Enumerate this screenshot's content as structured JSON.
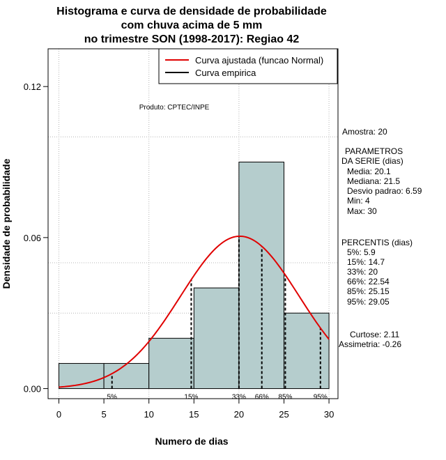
{
  "chart_data": {
    "type": "bar",
    "title_lines": [
      "Histograma e curva de densidade de probabilidade",
      "com chuva acima de 5 mm",
      "no trimestre SON (1998-2017): Regiao 42"
    ],
    "xlabel": "Numero de dias",
    "ylabel": "Densidade de probabilidade",
    "xlim": [
      -1.2,
      31
    ],
    "ylim": [
      -0.004,
      0.135
    ],
    "x_ticks": [
      0,
      5,
      10,
      15,
      20,
      25,
      30
    ],
    "x_tick_labels": [
      "0",
      "5",
      "10",
      "15",
      "20",
      "25",
      "30"
    ],
    "y_ticks": [
      0.0,
      0.06,
      0.12
    ],
    "y_tick_labels": [
      "0.00",
      "0.06",
      "0.12"
    ],
    "grid_x": [
      0,
      10,
      20,
      30
    ],
    "grid_y": [
      0.03,
      0.05,
      0.1
    ],
    "bars": [
      {
        "x0": 0,
        "x1": 5,
        "density": 0.01
      },
      {
        "x0": 5,
        "x1": 10,
        "density": 0.01
      },
      {
        "x0": 10,
        "x1": 15,
        "density": 0.02
      },
      {
        "x0": 15,
        "x1": 20,
        "density": 0.04
      },
      {
        "x0": 20,
        "x1": 25,
        "density": 0.09
      },
      {
        "x0": 25,
        "x1": 30,
        "density": 0.03
      }
    ],
    "bar_color": "#b5cdcd",
    "normal_fit": {
      "mean": 20.1,
      "sd": 6.59,
      "x_range": [
        0,
        30
      ],
      "color": "#e00000"
    },
    "percentile_lines": [
      {
        "x": 5.9,
        "label": "5%"
      },
      {
        "x": 14.7,
        "label": "15%"
      },
      {
        "x": 20,
        "label": "33%"
      },
      {
        "x": 22.54,
        "label": "66%"
      },
      {
        "x": 25.15,
        "label": "85%"
      },
      {
        "x": 29.05,
        "label": "95%"
      }
    ],
    "legend": {
      "position": "top-right",
      "entries": [
        {
          "label": "Curva ajustada (funcao Normal)",
          "color": "#e00000"
        },
        {
          "label": "Curva empirica",
          "color": "#000000"
        }
      ]
    },
    "annotation": "Produto: CPTEC/INPE",
    "side_info": {
      "amostra": "Amostra: 20",
      "parametros_title": [
        "PARAMETROS",
        "DA SERIE (dias)"
      ],
      "parametros": [
        "Media: 20.1",
        "Mediana: 21.5",
        "Desvio padrao: 6.59",
        "Min: 4",
        "Max: 30"
      ],
      "percentis_title": "PERCENTIS (dias)",
      "percentis": [
        "5%: 5.9",
        "15%: 14.7",
        "33%: 20",
        "66%: 22.54",
        "85%: 25.15",
        "95%: 29.05"
      ],
      "curtose": "Curtose: 2.11",
      "assimetria": "Assimetria: -0.26"
    }
  }
}
